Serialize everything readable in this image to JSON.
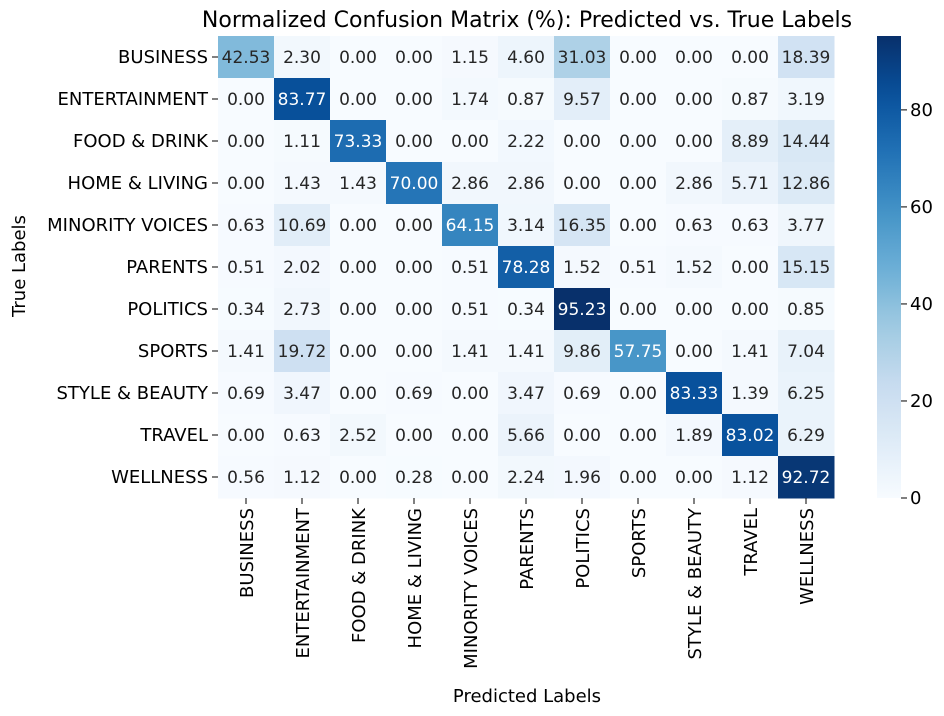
{
  "chart_data": {
    "type": "heatmap",
    "title": "Normalized Confusion Matrix (%): Predicted vs. True Labels",
    "xlabel": "Predicted Labels",
    "ylabel": "True Labels",
    "x_categories": [
      "BUSINESS",
      "ENTERTAINMENT",
      "FOOD & DRINK",
      "HOME & LIVING",
      "MINORITY VOICES",
      "PARENTS",
      "POLITICS",
      "SPORTS",
      "STYLE & BEAUTY",
      "TRAVEL",
      "WELLNESS"
    ],
    "y_categories": [
      "BUSINESS",
      "ENTERTAINMENT",
      "FOOD & DRINK",
      "HOME & LIVING",
      "MINORITY VOICES",
      "PARENTS",
      "POLITICS",
      "SPORTS",
      "STYLE & BEAUTY",
      "TRAVEL",
      "WELLNESS"
    ],
    "values": [
      [
        42.53,
        2.3,
        0.0,
        0.0,
        1.15,
        4.6,
        31.03,
        0.0,
        0.0,
        0.0,
        18.39
      ],
      [
        0.0,
        83.77,
        0.0,
        0.0,
        1.74,
        0.87,
        9.57,
        0.0,
        0.0,
        0.87,
        3.19
      ],
      [
        0.0,
        1.11,
        73.33,
        0.0,
        0.0,
        2.22,
        0.0,
        0.0,
        0.0,
        8.89,
        14.44
      ],
      [
        0.0,
        1.43,
        1.43,
        70.0,
        2.86,
        2.86,
        0.0,
        0.0,
        2.86,
        5.71,
        12.86
      ],
      [
        0.63,
        10.69,
        0.0,
        0.0,
        64.15,
        3.14,
        16.35,
        0.0,
        0.63,
        0.63,
        3.77
      ],
      [
        0.51,
        2.02,
        0.0,
        0.0,
        0.51,
        78.28,
        1.52,
        0.51,
        1.52,
        0.0,
        15.15
      ],
      [
        0.34,
        2.73,
        0.0,
        0.0,
        0.51,
        0.34,
        95.23,
        0.0,
        0.0,
        0.0,
        0.85
      ],
      [
        1.41,
        19.72,
        0.0,
        0.0,
        1.41,
        1.41,
        9.86,
        57.75,
        0.0,
        1.41,
        7.04
      ],
      [
        0.69,
        3.47,
        0.0,
        0.69,
        0.0,
        3.47,
        0.69,
        0.0,
        83.33,
        1.39,
        6.25
      ],
      [
        0.0,
        0.63,
        2.52,
        0.0,
        0.0,
        5.66,
        0.0,
        0.0,
        1.89,
        83.02,
        6.29
      ],
      [
        0.56,
        1.12,
        0.0,
        0.28,
        0.0,
        2.24,
        1.96,
        0.0,
        0.0,
        1.12,
        92.72
      ]
    ],
    "value_format": "2 decimals",
    "colormap": "Blues",
    "colorbar": {
      "vmin": 0,
      "vmax": 95.23,
      "ticks": [
        "0",
        "20",
        "40",
        "60",
        "80"
      ],
      "tick_values": [
        0,
        20,
        40,
        60,
        80
      ]
    }
  }
}
